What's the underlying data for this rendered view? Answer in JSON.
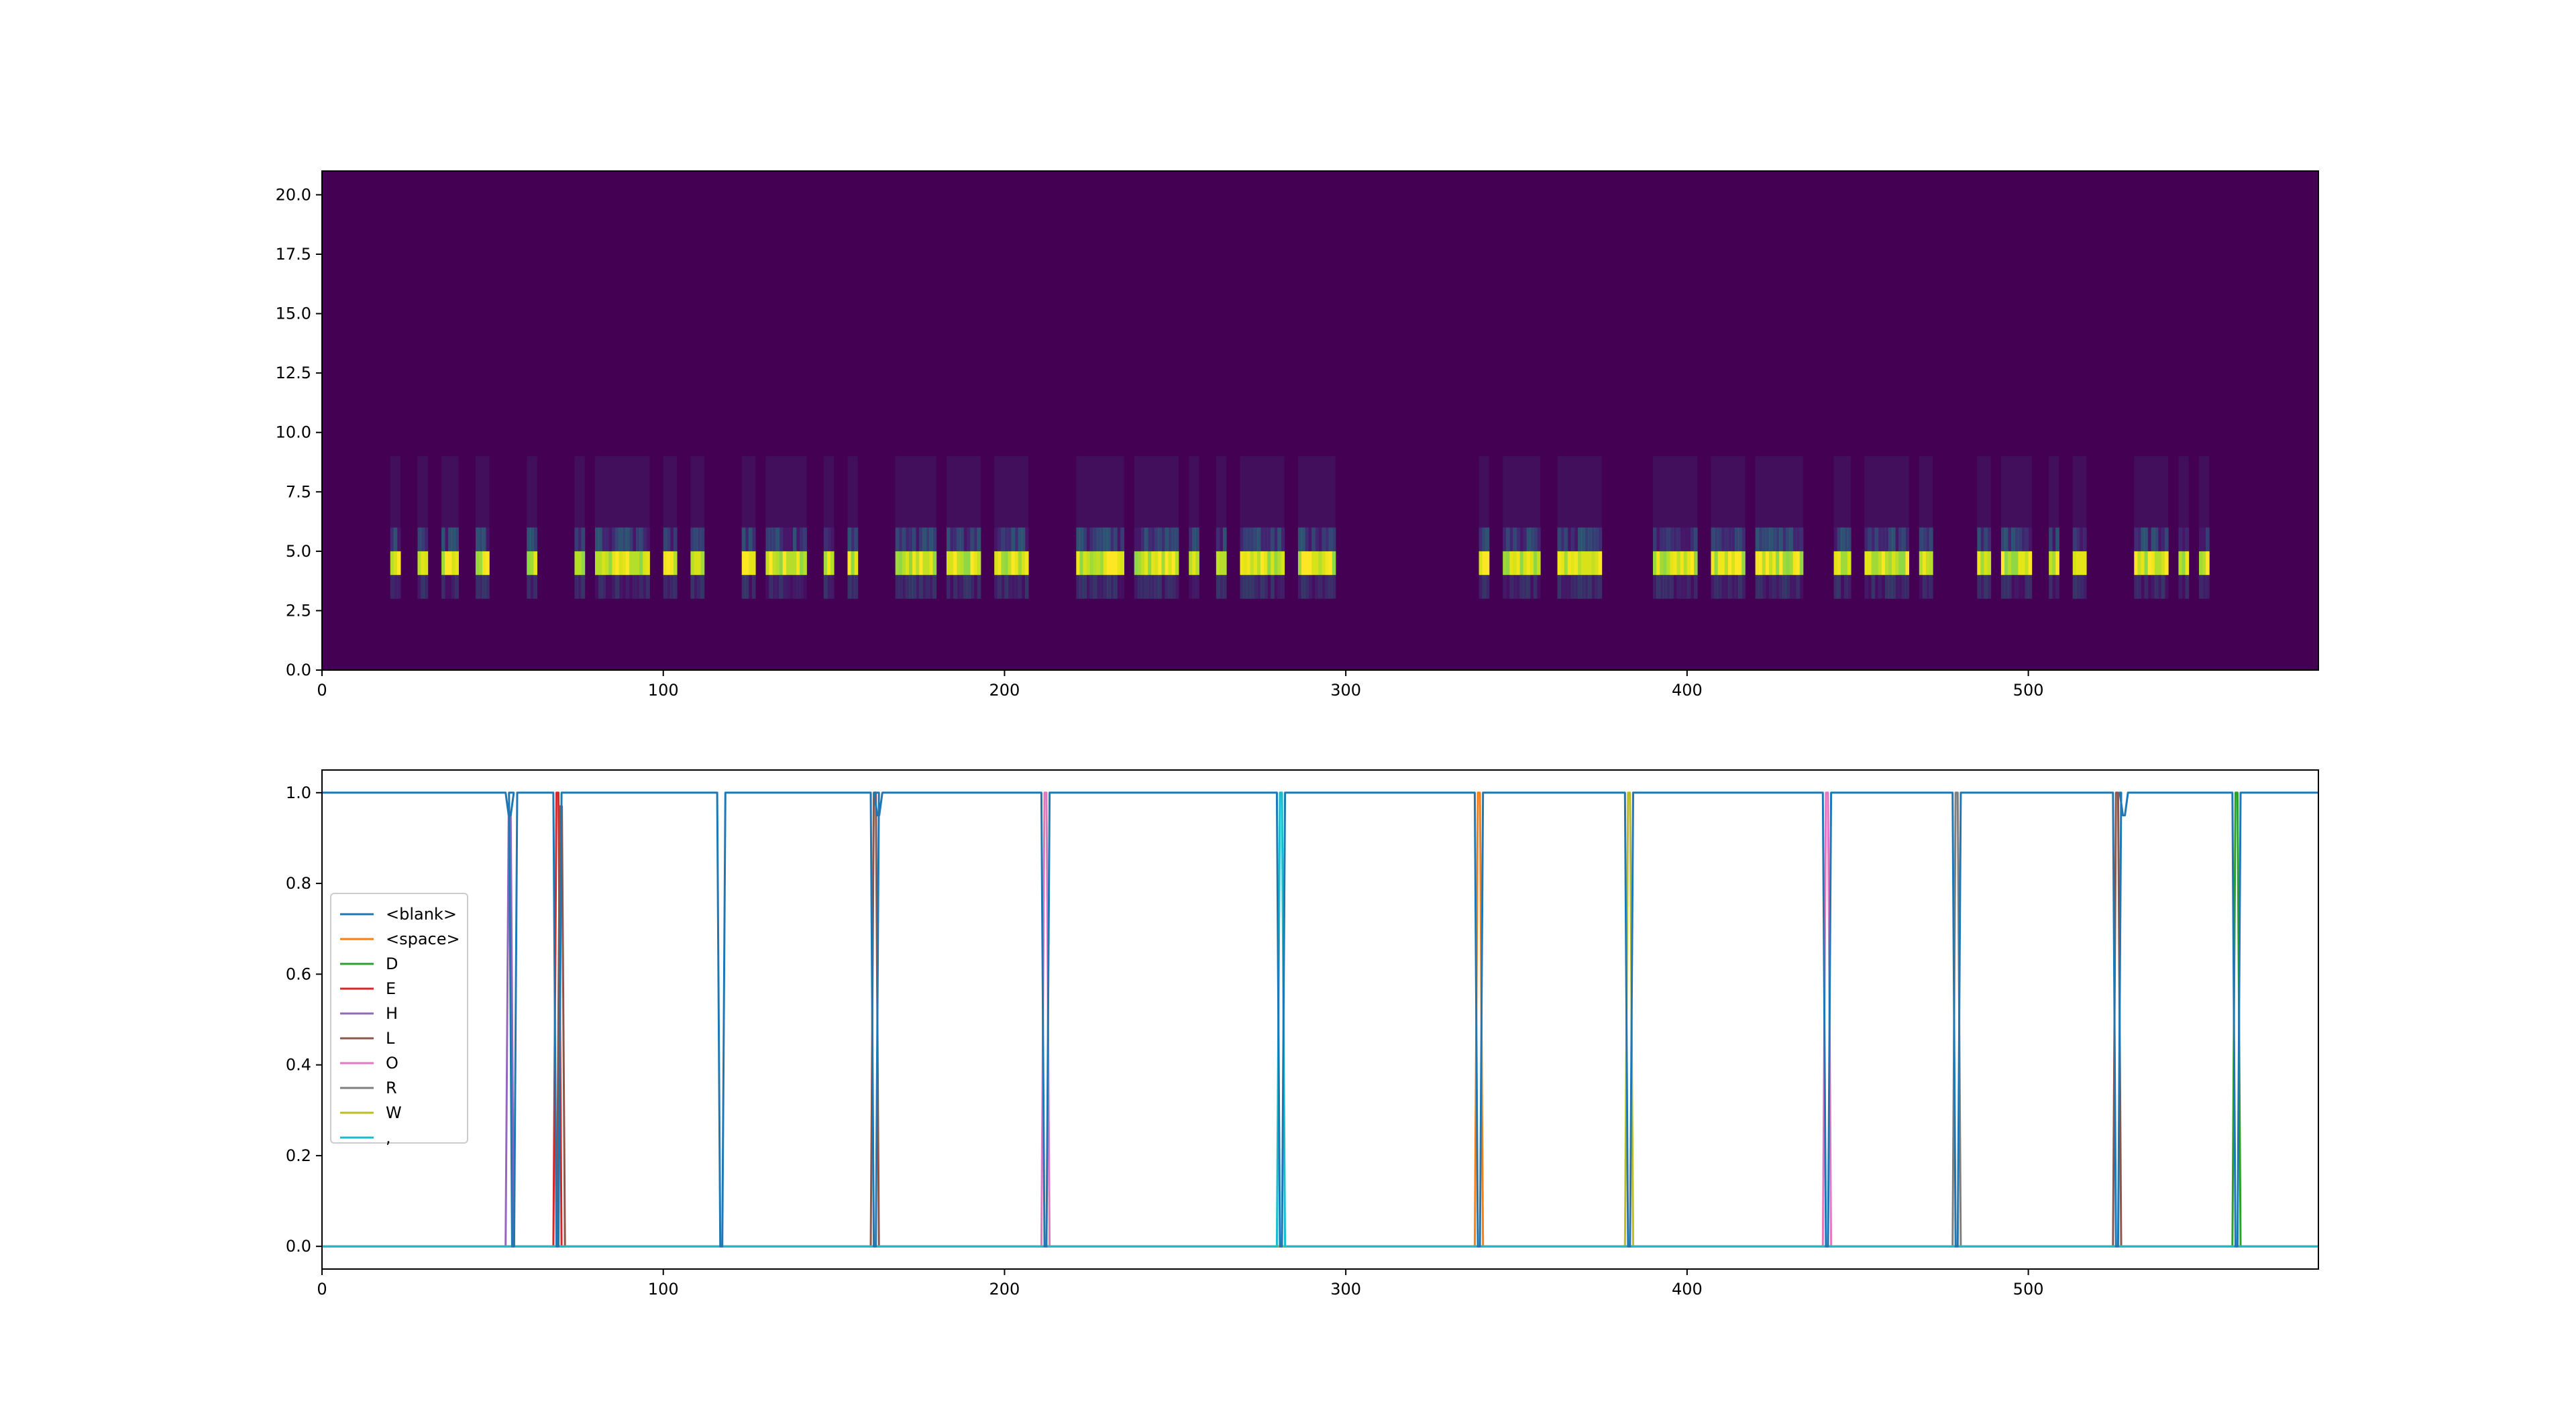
{
  "chart_data": [
    {
      "type": "heatmap",
      "title": "",
      "xlabel": "",
      "ylabel": "",
      "xlim": [
        0,
        585
      ],
      "ylim": [
        0,
        21
      ],
      "xticks": [
        "0",
        "100",
        "200",
        "300",
        "400",
        "500"
      ],
      "yticks": [
        "0.0",
        "2.5",
        "5.0",
        "7.5",
        "10.0",
        "12.5",
        "15.0",
        "17.5",
        "20.0"
      ],
      "colormap": "viridis",
      "background_color": "#440154",
      "active_rows": [
        4,
        5
      ],
      "segments": [
        [
          20,
          23
        ],
        [
          28,
          31
        ],
        [
          35,
          40
        ],
        [
          45,
          49
        ],
        [
          60,
          63
        ],
        [
          74,
          77
        ],
        [
          80,
          96
        ],
        [
          100,
          104
        ],
        [
          108,
          112
        ],
        [
          123,
          127
        ],
        [
          130,
          142
        ],
        [
          147,
          150
        ],
        [
          154,
          157
        ],
        [
          168,
          180
        ],
        [
          183,
          193
        ],
        [
          197,
          207
        ],
        [
          221,
          235
        ],
        [
          238,
          251
        ],
        [
          254,
          257
        ],
        [
          262,
          265
        ],
        [
          269,
          282
        ],
        [
          286,
          297
        ],
        [
          339,
          342
        ],
        [
          346,
          357
        ],
        [
          362,
          375
        ],
        [
          390,
          403
        ],
        [
          407,
          417
        ],
        [
          420,
          434
        ],
        [
          443,
          448
        ],
        [
          452,
          465
        ],
        [
          468,
          472
        ],
        [
          485,
          489
        ],
        [
          492,
          501
        ],
        [
          506,
          509
        ],
        [
          513,
          517
        ],
        [
          531,
          541
        ],
        [
          544,
          547
        ],
        [
          550,
          553
        ]
      ]
    },
    {
      "type": "line",
      "title": "",
      "xlabel": "",
      "ylabel": "",
      "xlim": [
        0,
        585
      ],
      "ylim": [
        -0.05,
        1.05
      ],
      "xticks": [
        "0",
        "100",
        "200",
        "300",
        "400",
        "500"
      ],
      "yticks": [
        "0.0",
        "0.2",
        "0.4",
        "0.6",
        "0.8",
        "1.0"
      ],
      "legend_position": "center-left",
      "series": [
        {
          "name": "<blank>",
          "color": "#1f77b4",
          "dips": [
            [
              55,
              0.95
            ],
            [
              56,
              0
            ],
            [
              69,
              0
            ],
            [
              117,
              0
            ],
            [
              162,
              0
            ],
            [
              163,
              0.95
            ],
            [
              212,
              0
            ],
            [
              281,
              0
            ],
            [
              339,
              0
            ],
            [
              383,
              0
            ],
            [
              441,
              0
            ],
            [
              479,
              0
            ],
            [
              526,
              0
            ],
            [
              528,
              0.95
            ],
            [
              561,
              0
            ]
          ]
        },
        {
          "name": "<space>",
          "color": "#ff7f0e",
          "peaks": [
            [
              339,
              1.0
            ]
          ]
        },
        {
          "name": "D",
          "color": "#2ca02c",
          "peaks": [
            [
              561,
              1.0
            ]
          ]
        },
        {
          "name": "E",
          "color": "#d62728",
          "peaks": [
            [
              69,
              1.0
            ]
          ]
        },
        {
          "name": "H",
          "color": "#9467bd",
          "peaks": [
            [
              55,
              0.95
            ]
          ]
        },
        {
          "name": "L",
          "color": "#8c564b",
          "peaks": [
            [
              70,
              0.97
            ],
            [
              162,
              1.0
            ],
            [
              526,
              1.0
            ]
          ]
        },
        {
          "name": "O",
          "color": "#e377c2",
          "peaks": [
            [
              212,
              1.0
            ],
            [
              441,
              1.0
            ]
          ]
        },
        {
          "name": "R",
          "color": "#7f7f7f",
          "peaks": [
            [
              479,
              1.0
            ]
          ]
        },
        {
          "name": "W",
          "color": "#bcbd22",
          "peaks": [
            [
              383,
              1.0
            ]
          ]
        },
        {
          "name": ",",
          "color": "#17becf",
          "peaks": [
            [
              281,
              1.0
            ]
          ]
        }
      ]
    }
  ]
}
